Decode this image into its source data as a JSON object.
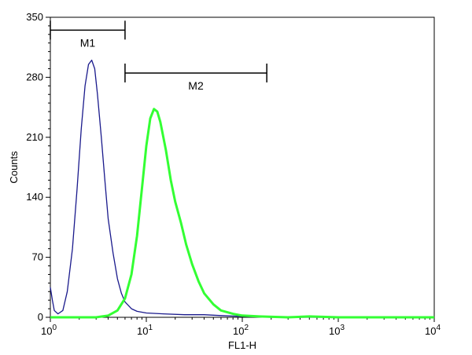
{
  "chart_data": {
    "type": "line",
    "xlabel": "FL1-H",
    "ylabel": "Counts",
    "xscale": "log",
    "xlim": [
      1,
      10000
    ],
    "ylim": [
      0,
      350
    ],
    "y_ticks": [
      "0",
      "70",
      "140",
      "210",
      "280",
      "350"
    ],
    "y_tick_values": [
      0,
      70,
      140,
      210,
      280,
      350
    ],
    "x_ticks": [
      {
        "base": "10",
        "exp": "0",
        "value": 1
      },
      {
        "base": "10",
        "exp": "1",
        "value": 10
      },
      {
        "base": "10",
        "exp": "2",
        "value": 100
      },
      {
        "base": "10",
        "exp": "3",
        "value": 1000
      },
      {
        "base": "10",
        "exp": "4",
        "value": 10000
      }
    ],
    "markers": [
      {
        "label": "M1",
        "start": 1.0,
        "end": 6.0,
        "level": 335
      },
      {
        "label": "M2",
        "start": 6.0,
        "end": 180,
        "level": 285
      }
    ],
    "series": [
      {
        "color": "#1a1a8c",
        "points": [
          [
            1.0,
            35
          ],
          [
            1.05,
            20
          ],
          [
            1.1,
            8
          ],
          [
            1.2,
            4
          ],
          [
            1.35,
            8
          ],
          [
            1.5,
            30
          ],
          [
            1.7,
            80
          ],
          [
            1.9,
            150
          ],
          [
            2.1,
            220
          ],
          [
            2.3,
            270
          ],
          [
            2.5,
            295
          ],
          [
            2.7,
            300
          ],
          [
            2.9,
            290
          ],
          [
            3.1,
            260
          ],
          [
            3.4,
            210
          ],
          [
            3.7,
            160
          ],
          [
            4.0,
            115
          ],
          [
            4.5,
            75
          ],
          [
            5.0,
            45
          ],
          [
            5.5,
            28
          ],
          [
            6.0,
            18
          ],
          [
            7.0,
            10
          ],
          [
            8.0,
            7
          ],
          [
            10.0,
            5
          ],
          [
            15.0,
            4
          ],
          [
            25.0,
            3
          ],
          [
            40.0,
            3
          ],
          [
            60.0,
            2
          ],
          [
            100.0,
            1
          ],
          [
            200.0,
            0
          ],
          [
            10000.0,
            0
          ]
        ]
      },
      {
        "color": "#33ff33",
        "points": [
          [
            1.0,
            0
          ],
          [
            3.0,
            0
          ],
          [
            4.0,
            2
          ],
          [
            5.0,
            8
          ],
          [
            6.0,
            22
          ],
          [
            7.0,
            50
          ],
          [
            8.0,
            95
          ],
          [
            9.0,
            150
          ],
          [
            10.0,
            200
          ],
          [
            11.0,
            232
          ],
          [
            12.0,
            243
          ],
          [
            13.0,
            240
          ],
          [
            14.0,
            228
          ],
          [
            16.0,
            195
          ],
          [
            18.0,
            160
          ],
          [
            20.0,
            135
          ],
          [
            23.0,
            110
          ],
          [
            26.0,
            85
          ],
          [
            30.0,
            62
          ],
          [
            35.0,
            42
          ],
          [
            40.0,
            28
          ],
          [
            50.0,
            15
          ],
          [
            60.0,
            8
          ],
          [
            80.0,
            4
          ],
          [
            100.0,
            2
          ],
          [
            150.0,
            1
          ],
          [
            300.0,
            0
          ],
          [
            500.0,
            1
          ],
          [
            1000.0,
            0
          ],
          [
            10000.0,
            0
          ]
        ]
      }
    ]
  }
}
